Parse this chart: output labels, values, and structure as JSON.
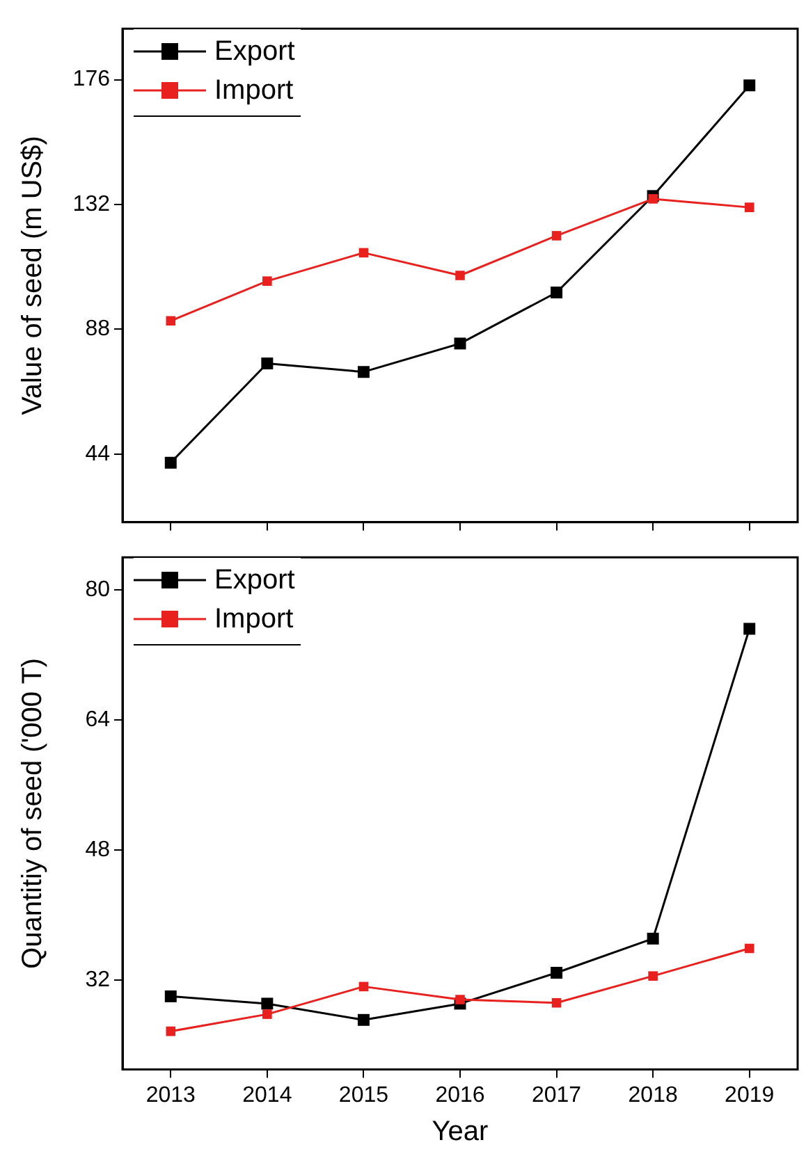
{
  "chart_data": [
    {
      "type": "line",
      "ylabel": "Value of seed (m US$)",
      "categories": [
        "2013",
        "2014",
        "2015",
        "2016",
        "2017",
        "2018",
        "2019"
      ],
      "ylim": [
        20,
        194
      ],
      "yticks": [
        44,
        88,
        132,
        176
      ],
      "tick_labels": "y",
      "legend": "top left",
      "marker": "square",
      "grid": false,
      "series": [
        {
          "name": "Export",
          "color": "#000000",
          "values": [
            41,
            76,
            73,
            83,
            101,
            135,
            174
          ]
        },
        {
          "name": "Import",
          "color": "#e8201e",
          "values": [
            91,
            105,
            115,
            107,
            121,
            134,
            131
          ]
        }
      ]
    },
    {
      "type": "line",
      "xlabel": "Year",
      "ylabel": "Quantitiy of seed ('000 T)",
      "categories": [
        "2013",
        "2014",
        "2015",
        "2016",
        "2017",
        "2018",
        "2019"
      ],
      "ylim": [
        21,
        84
      ],
      "yticks": [
        32,
        48,
        64,
        80
      ],
      "legend": "top left",
      "marker": "square",
      "grid": false,
      "series": [
        {
          "name": "Export",
          "color": "#000000",
          "values": [
            30,
            29.1,
            27.1,
            29.1,
            32.9,
            37.1,
            75.2
          ]
        },
        {
          "name": "Import",
          "color": "#e8201e",
          "values": [
            25.7,
            27.8,
            31.2,
            29.6,
            29.2,
            32.5,
            35.9
          ]
        }
      ]
    }
  ]
}
